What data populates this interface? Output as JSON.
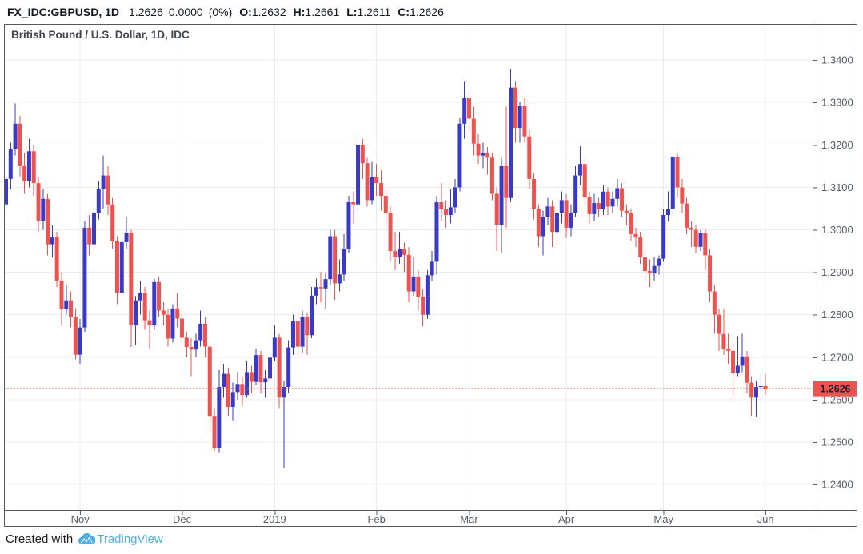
{
  "header": {
    "symbol": "FX_IDC:GBPUSD, 1D",
    "last": "1.2626",
    "change": "0.0000",
    "change_pct": "(0%)",
    "o_label": "O:",
    "o": "1.2632",
    "h_label": "H:",
    "h": "1.2661",
    "l_label": "L:",
    "l": "1.2611",
    "c_label": "C:",
    "c": "1.2626"
  },
  "watermark": "British Pound / U.S. Dollar, 1D, IDC",
  "footer": {
    "created_with": "Created with",
    "brand": "TradingView"
  },
  "colors": {
    "up": "#3a3ac9",
    "down": "#ef5350",
    "grid": "#e8edf2",
    "frame": "#55585f",
    "axis_text": "#555d66",
    "last_price_line": "#ef5350",
    "last_price_bg": "#ef5350",
    "last_price_text": "#1e222d",
    "header_text": "#131722",
    "brand_blue": "#4fb0e5"
  },
  "chart_data": {
    "type": "candlestick",
    "title": "British Pound / U.S. Dollar, 1D, IDC",
    "symbol": "FX_IDC:GBPUSD",
    "interval": "1D",
    "ylim": [
      1.234,
      1.3485
    ],
    "grid": true,
    "price_ticks": [
      "1.3400",
      "1.3300",
      "1.3200",
      "1.3100",
      "1.3000",
      "1.2900",
      "1.2800",
      "1.2700",
      "1.2600",
      "1.2500",
      "1.2400"
    ],
    "months": [
      {
        "label": "Nov",
        "index": 16
      },
      {
        "label": "Dec",
        "index": 38
      },
      {
        "label": "2019",
        "index": 58
      },
      {
        "label": "Feb",
        "index": 80
      },
      {
        "label": "Mar",
        "index": 100
      },
      {
        "label": "Apr",
        "index": 121
      },
      {
        "label": "May",
        "index": 142
      },
      {
        "label": "Jun",
        "index": 164
      }
    ],
    "last_price": 1.2626,
    "last_price_label": "1.2626",
    "candles": [
      [
        1.306,
        1.3135,
        1.304,
        1.312
      ],
      [
        1.312,
        1.3205,
        1.3095,
        1.319
      ],
      [
        1.319,
        1.3298,
        1.3175,
        1.325
      ],
      [
        1.325,
        1.3268,
        1.3125,
        1.315
      ],
      [
        1.315,
        1.318,
        1.3085,
        1.3115
      ],
      [
        1.3115,
        1.3215,
        1.31,
        1.3185
      ],
      [
        1.3185,
        1.32,
        1.308,
        1.311
      ],
      [
        1.311,
        1.3125,
        1.2995,
        1.3021
      ],
      [
        1.3021,
        1.3095,
        1.3,
        1.3073
      ],
      [
        1.3073,
        1.3085,
        1.294,
        1.2966
      ],
      [
        1.2966,
        1.301,
        1.2935,
        1.2982
      ],
      [
        1.2982,
        1.2995,
        1.2865,
        1.288
      ],
      [
        1.288,
        1.29,
        1.2775,
        1.2813
      ],
      [
        1.2813,
        1.287,
        1.28,
        1.2834
      ],
      [
        1.2834,
        1.2855,
        1.277,
        1.2795
      ],
      [
        1.2795,
        1.2815,
        1.2695,
        1.2706
      ],
      [
        1.2706,
        1.279,
        1.2685,
        1.277
      ],
      [
        1.277,
        1.302,
        1.276,
        1.3005
      ],
      [
        1.3005,
        1.3035,
        1.294,
        1.2966
      ],
      [
        1.2966,
        1.306,
        1.2945,
        1.304
      ],
      [
        1.304,
        1.3115,
        1.3025,
        1.3097
      ],
      [
        1.3097,
        1.3175,
        1.305,
        1.3128
      ],
      [
        1.3128,
        1.315,
        1.3035,
        1.306
      ],
      [
        1.306,
        1.3075,
        1.2955,
        1.2973
      ],
      [
        1.2973,
        1.2985,
        1.2825,
        1.2852
      ],
      [
        1.2852,
        1.298,
        1.284,
        1.2971
      ],
      [
        1.2971,
        1.303,
        1.2955,
        1.2993
      ],
      [
        1.2993,
        1.3,
        1.2724,
        1.2775
      ],
      [
        1.2775,
        1.2845,
        1.273,
        1.2834
      ],
      [
        1.2834,
        1.288,
        1.28,
        1.2852
      ],
      [
        1.2852,
        1.2865,
        1.2765,
        1.2787
      ],
      [
        1.2787,
        1.281,
        1.272,
        1.2775
      ],
      [
        1.2775,
        1.2885,
        1.2765,
        1.2877
      ],
      [
        1.2877,
        1.289,
        1.2795,
        1.281
      ],
      [
        1.281,
        1.283,
        1.2775,
        1.28
      ],
      [
        1.28,
        1.2815,
        1.2725,
        1.2744
      ],
      [
        1.2744,
        1.2825,
        1.2735,
        1.2815
      ],
      [
        1.2815,
        1.285,
        1.277,
        1.2791
      ],
      [
        1.2791,
        1.2805,
        1.2735,
        1.2746
      ],
      [
        1.2746,
        1.276,
        1.27,
        1.2724
      ],
      [
        1.2724,
        1.2745,
        1.2655,
        1.2718
      ],
      [
        1.2718,
        1.2755,
        1.27,
        1.274
      ],
      [
        1.274,
        1.281,
        1.2725,
        1.2779
      ],
      [
        1.2779,
        1.2795,
        1.27,
        1.2725
      ],
      [
        1.2725,
        1.2735,
        1.253,
        1.256
      ],
      [
        1.256,
        1.258,
        1.2478,
        1.2485
      ],
      [
        1.2485,
        1.267,
        1.2475,
        1.263
      ],
      [
        1.263,
        1.2685,
        1.2605,
        1.2661
      ],
      [
        1.2661,
        1.2675,
        1.256,
        1.2583
      ],
      [
        1.2583,
        1.264,
        1.255,
        1.2618
      ],
      [
        1.2618,
        1.2665,
        1.26,
        1.2637
      ],
      [
        1.2637,
        1.2655,
        1.2585,
        1.2611
      ],
      [
        1.2611,
        1.269,
        1.2605,
        1.2665
      ],
      [
        1.2665,
        1.268,
        1.2615,
        1.2642
      ],
      [
        1.2642,
        1.272,
        1.2635,
        1.2705
      ],
      [
        1.2705,
        1.2715,
        1.2615,
        1.2641
      ],
      [
        1.2641,
        1.267,
        1.2605,
        1.265
      ],
      [
        1.265,
        1.271,
        1.264,
        1.2699
      ],
      [
        1.2699,
        1.2775,
        1.269,
        1.2746
      ],
      [
        1.2746,
        1.2755,
        1.258,
        1.2605
      ],
      [
        1.2605,
        1.2645,
        1.244,
        1.263
      ],
      [
        1.263,
        1.274,
        1.2615,
        1.2723
      ],
      [
        1.2723,
        1.28,
        1.2705,
        1.2785
      ],
      [
        1.2785,
        1.2805,
        1.2705,
        1.2725
      ],
      [
        1.2725,
        1.281,
        1.271,
        1.2795
      ],
      [
        1.2795,
        1.2805,
        1.2705,
        1.2752
      ],
      [
        1.2752,
        1.2865,
        1.2745,
        1.2845
      ],
      [
        1.2845,
        1.2885,
        1.2825,
        1.2865
      ],
      [
        1.2865,
        1.29,
        1.283,
        1.2862
      ],
      [
        1.2862,
        1.29,
        1.2815,
        1.2884
      ],
      [
        1.2884,
        1.3,
        1.287,
        1.2985
      ],
      [
        1.2985,
        1.3,
        1.2835,
        1.2874
      ],
      [
        1.2874,
        1.293,
        1.2855,
        1.2895
      ],
      [
        1.2895,
        1.299,
        1.288,
        1.2955
      ],
      [
        1.2955,
        1.308,
        1.2945,
        1.3065
      ],
      [
        1.3065,
        1.309,
        1.3015,
        1.306
      ],
      [
        1.306,
        1.3218,
        1.305,
        1.32
      ],
      [
        1.32,
        1.3215,
        1.312,
        1.3157
      ],
      [
        1.3157,
        1.317,
        1.3055,
        1.307
      ],
      [
        1.307,
        1.316,
        1.306,
        1.3125
      ],
      [
        1.3125,
        1.3155,
        1.308,
        1.311
      ],
      [
        1.311,
        1.314,
        1.3045,
        1.308
      ],
      [
        1.308,
        1.3095,
        1.301,
        1.304
      ],
      [
        1.304,
        1.3055,
        1.2925,
        1.295
      ],
      [
        1.295,
        1.2995,
        1.2905,
        1.2935
      ],
      [
        1.2935,
        1.2995,
        1.292,
        1.2955
      ],
      [
        1.2955,
        1.297,
        1.29,
        1.2941
      ],
      [
        1.2941,
        1.296,
        1.283,
        1.2855
      ],
      [
        1.2855,
        1.2935,
        1.2845,
        1.289
      ],
      [
        1.289,
        1.2905,
        1.281,
        1.2843
      ],
      [
        1.2843,
        1.286,
        1.2772,
        1.28
      ],
      [
        1.28,
        1.2905,
        1.279,
        1.2893
      ],
      [
        1.2893,
        1.295,
        1.288,
        1.2925
      ],
      [
        1.2925,
        1.308,
        1.2895,
        1.3065
      ],
      [
        1.3065,
        1.311,
        1.302,
        1.3048
      ],
      [
        1.3048,
        1.307,
        1.3005,
        1.3035
      ],
      [
        1.3035,
        1.3095,
        1.3015,
        1.3053
      ],
      [
        1.3053,
        1.312,
        1.304,
        1.31
      ],
      [
        1.31,
        1.3265,
        1.309,
        1.325
      ],
      [
        1.325,
        1.335,
        1.3215,
        1.331
      ],
      [
        1.331,
        1.3325,
        1.3225,
        1.3262
      ],
      [
        1.3262,
        1.329,
        1.3175,
        1.3203
      ],
      [
        1.3203,
        1.3225,
        1.3155,
        1.3175
      ],
      [
        1.3175,
        1.3205,
        1.3145,
        1.318
      ],
      [
        1.318,
        1.3195,
        1.313,
        1.317
      ],
      [
        1.317,
        1.318,
        1.307,
        1.3085
      ],
      [
        1.3085,
        1.31,
        1.295,
        1.3012
      ],
      [
        1.3012,
        1.317,
        1.2945,
        1.315
      ],
      [
        1.315,
        1.329,
        1.3005,
        1.3075
      ],
      [
        1.3075,
        1.338,
        1.3065,
        1.3335
      ],
      [
        1.3335,
        1.335,
        1.3205,
        1.324
      ],
      [
        1.324,
        1.33,
        1.3205,
        1.3293
      ],
      [
        1.3293,
        1.3312,
        1.3205,
        1.322
      ],
      [
        1.322,
        1.3235,
        1.3095,
        1.312
      ],
      [
        1.312,
        1.3135,
        1.3025,
        1.305
      ],
      [
        1.305,
        1.306,
        1.296,
        1.2985
      ],
      [
        1.2985,
        1.3045,
        1.294,
        1.303
      ],
      [
        1.303,
        1.3075,
        1.301,
        1.3055
      ],
      [
        1.3055,
        1.307,
        1.296,
        1.2995
      ],
      [
        1.2995,
        1.306,
        1.298,
        1.304
      ],
      [
        1.304,
        1.309,
        1.3015,
        1.307
      ],
      [
        1.307,
        1.3085,
        1.298,
        1.3005
      ],
      [
        1.3005,
        1.306,
        1.2985,
        1.304
      ],
      [
        1.304,
        1.315,
        1.303,
        1.3128
      ],
      [
        1.3128,
        1.3197,
        1.3105,
        1.3155
      ],
      [
        1.3155,
        1.317,
        1.306,
        1.3077
      ],
      [
        1.3077,
        1.309,
        1.3015,
        1.3037
      ],
      [
        1.3037,
        1.3085,
        1.302,
        1.3063
      ],
      [
        1.3063,
        1.3075,
        1.303,
        1.3048
      ],
      [
        1.3048,
        1.3105,
        1.3035,
        1.309
      ],
      [
        1.309,
        1.31,
        1.3035,
        1.3055
      ],
      [
        1.3055,
        1.309,
        1.304,
        1.3073
      ],
      [
        1.3073,
        1.312,
        1.3055,
        1.3098
      ],
      [
        1.3098,
        1.311,
        1.303,
        1.3045
      ],
      [
        1.3045,
        1.306,
        1.301,
        1.304
      ],
      [
        1.304,
        1.305,
        1.2975,
        1.299
      ],
      [
        1.299,
        1.3005,
        1.296,
        1.2982
      ],
      [
        1.2982,
        1.2995,
        1.292,
        1.2935
      ],
      [
        1.2935,
        1.295,
        1.288,
        1.2903
      ],
      [
        1.2903,
        1.293,
        1.2865,
        1.2898
      ],
      [
        1.2898,
        1.2935,
        1.288,
        1.2915
      ],
      [
        1.2915,
        1.294,
        1.2895,
        1.2932
      ],
      [
        1.2932,
        1.3048,
        1.2925,
        1.3035
      ],
      [
        1.3035,
        1.309,
        1.302,
        1.305
      ],
      [
        1.305,
        1.3176,
        1.3035,
        1.3172
      ],
      [
        1.3172,
        1.318,
        1.3075,
        1.31
      ],
      [
        1.31,
        1.312,
        1.304,
        1.3062
      ],
      [
        1.3062,
        1.3075,
        1.299,
        1.3005
      ],
      [
        1.3005,
        1.302,
        1.296,
        1.3
      ],
      [
        1.3,
        1.301,
        1.2945,
        1.296
      ],
      [
        1.296,
        1.3,
        1.295,
        1.2992
      ],
      [
        1.2992,
        1.3,
        1.2905,
        1.294
      ],
      [
        1.294,
        1.2955,
        1.283,
        1.2855
      ],
      [
        1.2855,
        1.287,
        1.2755,
        1.28
      ],
      [
        1.28,
        1.2815,
        1.2715,
        1.2755
      ],
      [
        1.2755,
        1.2815,
        1.2705,
        1.272
      ],
      [
        1.272,
        1.2755,
        1.2685,
        1.2715
      ],
      [
        1.2715,
        1.273,
        1.2605,
        1.2662
      ],
      [
        1.2662,
        1.275,
        1.2655,
        1.268
      ],
      [
        1.268,
        1.2755,
        1.2665,
        1.2702
      ],
      [
        1.2702,
        1.2715,
        1.2615,
        1.264
      ],
      [
        1.264,
        1.2655,
        1.256,
        1.2605
      ],
      [
        1.2605,
        1.2645,
        1.2558,
        1.263
      ],
      [
        1.263,
        1.266,
        1.26,
        1.2632
      ],
      [
        1.2632,
        1.2661,
        1.2611,
        1.2626
      ]
    ]
  }
}
